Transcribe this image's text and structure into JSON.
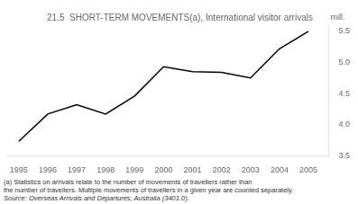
{
  "chart_data": {
    "type": "line",
    "title": "21.5  SHORT-TERM MOVEMENTS(a), International visitor arrivals",
    "x": [
      1995,
      1996,
      1997,
      1998,
      1999,
      2000,
      2001,
      2002,
      2003,
      2004,
      2005
    ],
    "values": [
      3.73,
      4.17,
      4.32,
      4.17,
      4.46,
      4.93,
      4.85,
      4.84,
      4.75,
      5.22,
      5.5
    ],
    "color": "#000000",
    "ylabel": "mill.",
    "xlim": [
      1994.6,
      2005.7
    ],
    "xticks": [
      1995,
      1996,
      1997,
      1998,
      1999,
      2000,
      2001,
      2002,
      2003,
      2004,
      2005
    ],
    "ylim": [
      3.5,
      5.6
    ],
    "yticks": [
      3.5,
      {
        "value": 4.0,
        "label": "4.0"
      },
      4.5,
      {
        "value": 5.0,
        "label": "5.0"
      },
      5.5
    ],
    "grid": false,
    "annotations": [
      "(a) Statistics on arrivals relate to the number of movements of travellers rather than",
      "the number of travellers. Multiple movements of travellers in a given year are counted separately.",
      "Source: Overseas Arrivals and Departures, Australia (3401.0)."
    ]
  }
}
